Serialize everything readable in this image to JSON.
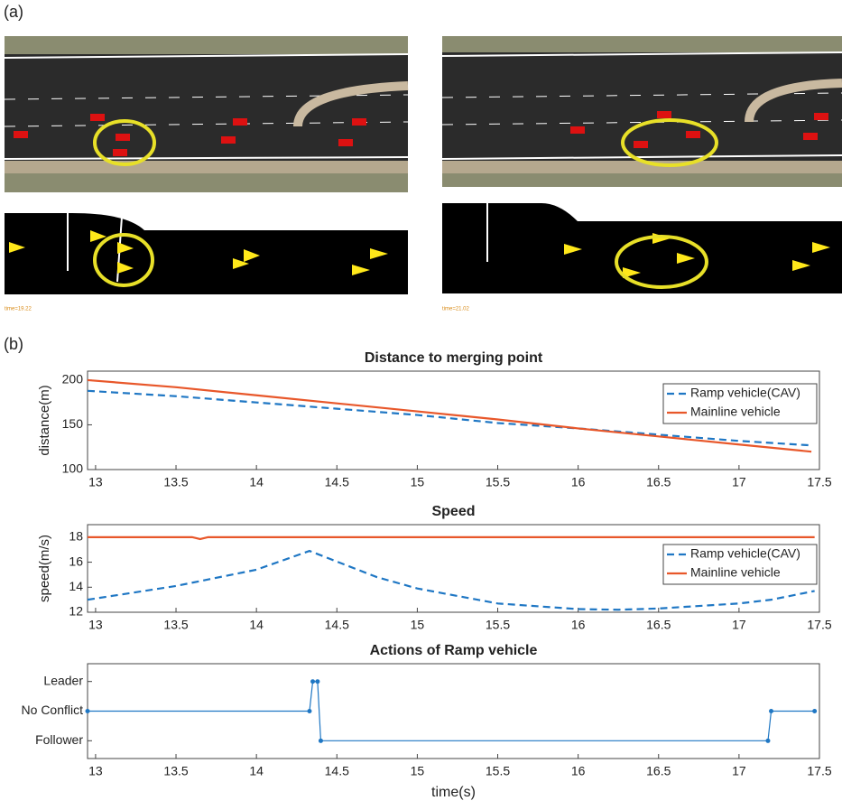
{
  "panel_labels": [
    "(a)",
    "(b)"
  ],
  "image_captions": [
    "time=19.22",
    "time=21.02"
  ],
  "chart_data": [
    {
      "type": "line",
      "title": "Distance to merging point",
      "ylabel": "distance(m)",
      "xlim": [
        12.95,
        17.5
      ],
      "xticks": [
        13,
        13.5,
        14,
        14.5,
        15,
        15.5,
        16,
        16.5,
        17,
        17.5
      ],
      "ylim": [
        100,
        210
      ],
      "yticks": [
        100,
        150,
        200
      ],
      "legend": "upper right",
      "series": [
        {
          "name": "Ramp vehicle(CAV)",
          "color": "#1f77c4",
          "dash": true,
          "x": [
            12.95,
            13.5,
            14,
            14.5,
            15,
            15.5,
            16,
            16.5,
            17,
            17.45
          ],
          "values": [
            188,
            182,
            175,
            168,
            161,
            152,
            146,
            139,
            132,
            127
          ]
        },
        {
          "name": "Mainline vehicle",
          "color": "#e8572a",
          "dash": false,
          "x": [
            12.95,
            13.5,
            14,
            14.5,
            15,
            15.5,
            16,
            16.5,
            17,
            17.45
          ],
          "values": [
            200,
            192,
            183,
            174,
            165,
            156,
            146,
            137,
            128,
            120
          ]
        }
      ]
    },
    {
      "type": "line",
      "title": "Speed",
      "ylabel": "speed(m/s)",
      "xlim": [
        12.95,
        17.5
      ],
      "xticks": [
        13,
        13.5,
        14,
        14.5,
        15,
        15.5,
        16,
        16.5,
        17,
        17.5
      ],
      "ylim": [
        12,
        19
      ],
      "yticks": [
        12,
        14,
        16,
        18
      ],
      "legend": "right",
      "series": [
        {
          "name": "Ramp vehicle(CAV)",
          "color": "#1f77c4",
          "dash": true,
          "x": [
            12.95,
            13.5,
            14,
            14.33,
            14.75,
            15,
            15.5,
            16,
            16.25,
            16.5,
            17,
            17.2,
            17.47
          ],
          "values": [
            13,
            14.1,
            15.4,
            16.9,
            14.8,
            13.9,
            12.7,
            12.25,
            12.2,
            12.3,
            12.7,
            13,
            13.7
          ]
        },
        {
          "name": "Mainline vehicle",
          "color": "#e8572a",
          "dash": false,
          "x": [
            12.95,
            13.6,
            13.65,
            13.7,
            17.47
          ],
          "values": [
            18,
            18,
            17.85,
            18,
            18
          ]
        }
      ]
    },
    {
      "type": "step",
      "title": "Actions of Ramp vehicle",
      "xlabel": "time(s)",
      "xlim": [
        12.95,
        17.5
      ],
      "xticks": [
        13,
        13.5,
        14,
        14.5,
        15,
        15.5,
        16,
        16.5,
        17,
        17.5
      ],
      "ylim": [
        -0.6,
        2.6
      ],
      "yticks": [
        {
          "value": 0,
          "label": "Follower"
        },
        {
          "value": 1,
          "label": "No Conflict"
        },
        {
          "value": 2,
          "label": "Leader"
        }
      ],
      "series": [
        {
          "color": "#1f77c4",
          "dash": false,
          "x": [
            12.95,
            14.33,
            14.35,
            14.38,
            14.4,
            17.18,
            17.2,
            17.47
          ],
          "values": [
            1,
            1,
            2,
            2,
            0,
            0,
            1,
            1
          ]
        }
      ]
    }
  ]
}
